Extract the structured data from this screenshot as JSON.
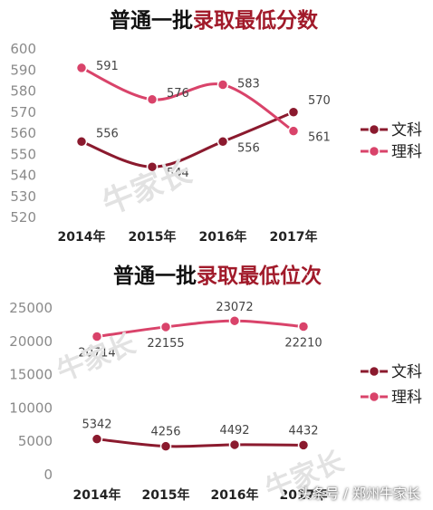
{
  "colors": {
    "wen": "#8b1a2e",
    "li": "#d9436a",
    "title_black": "#111111",
    "title_red": "#a11a2a"
  },
  "chart_data": [
    {
      "type": "line",
      "title_black": "普通一批",
      "title_red": "录取最低分数",
      "categories": [
        "2014年",
        "2015年",
        "2016年",
        "2017年"
      ],
      "ylim": [
        520,
        600
      ],
      "yticks": [
        "520",
        "530",
        "540",
        "550",
        "560",
        "570",
        "580",
        "590",
        "600"
      ],
      "grid": false,
      "legend_position": "right",
      "series": [
        {
          "name": "文科",
          "values": [
            556,
            544,
            556,
            570
          ],
          "labels": [
            "556",
            "544",
            "556",
            "570"
          ]
        },
        {
          "name": "理科",
          "values": [
            591,
            576,
            583,
            561
          ],
          "labels": [
            "591",
            "576",
            "583",
            "561"
          ]
        }
      ]
    },
    {
      "type": "line",
      "title_black": "普通一批",
      "title_red": "录取最低位次",
      "categories": [
        "2014年",
        "2015年",
        "2016年",
        "2017年"
      ],
      "ylim": [
        0,
        25000
      ],
      "yticks": [
        "0",
        "5000",
        "10000",
        "15000",
        "20000",
        "25000"
      ],
      "grid": false,
      "legend_position": "right",
      "series": [
        {
          "name": "文科",
          "values": [
            5342,
            4256,
            4492,
            4432
          ],
          "labels": [
            "5342",
            "4256",
            "4492",
            "4432"
          ]
        },
        {
          "name": "理科",
          "values": [
            20714,
            22155,
            23072,
            22210
          ],
          "labels": [
            "20714",
            "22155",
            "23072",
            "22210"
          ]
        }
      ]
    }
  ],
  "watermark": {
    "brand": "牛家长",
    "footer": "头条号 / 郑州牛家长"
  }
}
